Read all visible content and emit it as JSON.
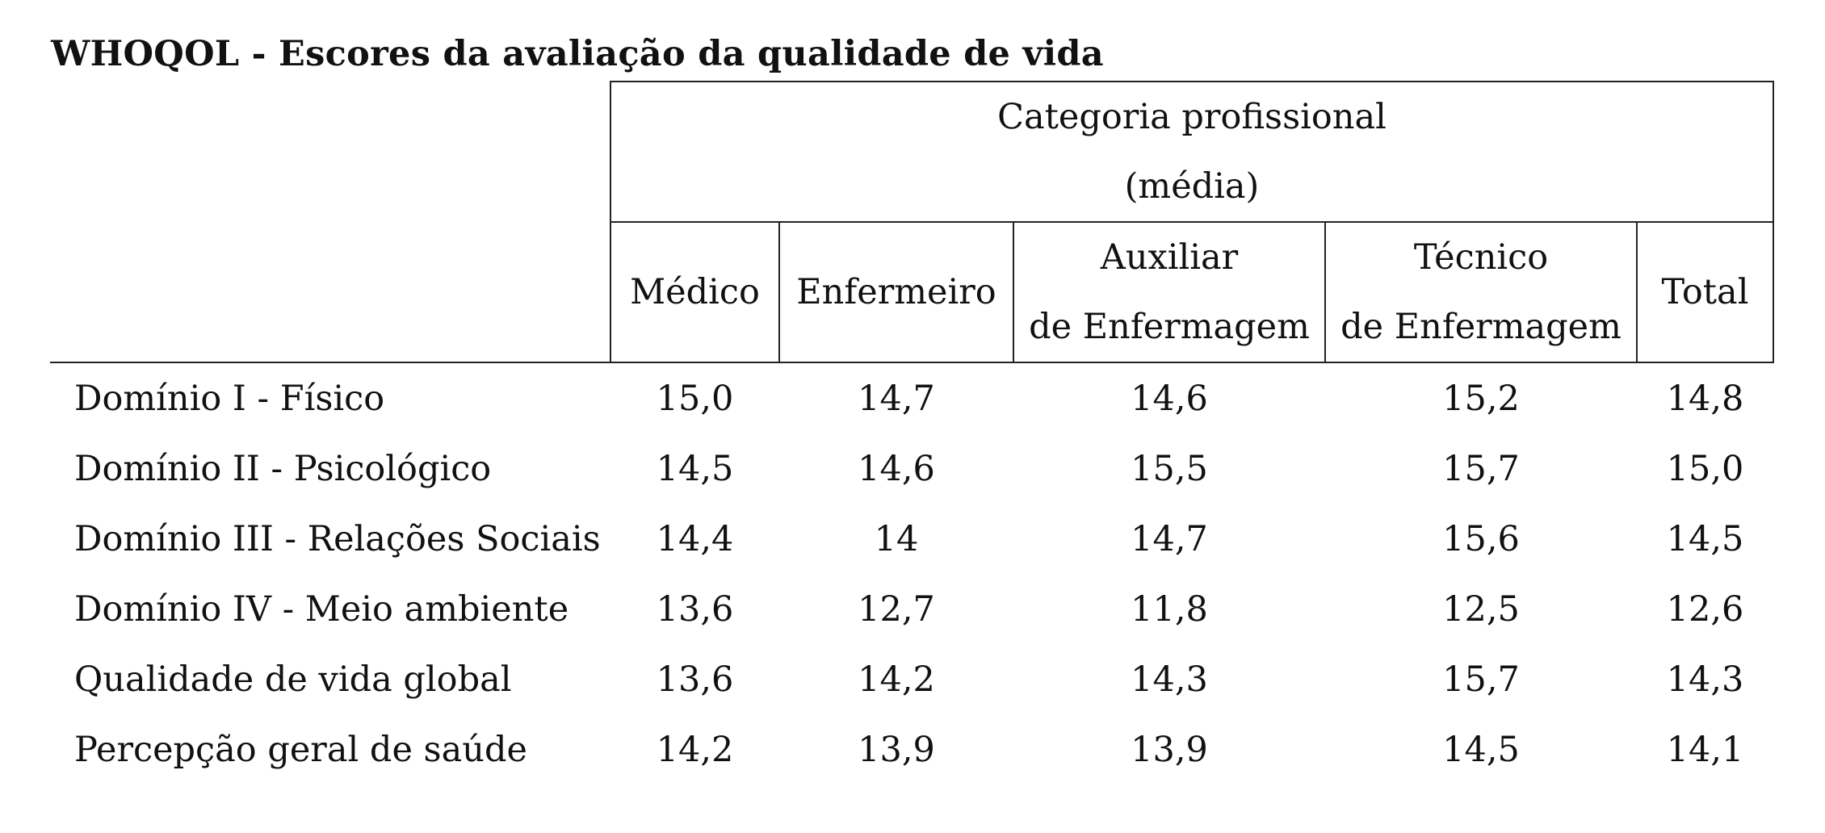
{
  "title": "WHOQOL - Escores da avaliação da qualidade de vida",
  "header": {
    "group_line1": "Categoria profissional",
    "group_line2": "(média)",
    "columns": [
      {
        "line1": "Médico",
        "line2": ""
      },
      {
        "line1": "Enfermeiro",
        "line2": ""
      },
      {
        "line1": "Auxiliar",
        "line2": "de Enfermagem"
      },
      {
        "line1": "Técnico",
        "line2": "de Enfermagem"
      },
      {
        "line1": "Total",
        "line2": ""
      }
    ]
  },
  "rows": [
    {
      "label": "Domínio I - Físico",
      "values": [
        "15,0",
        "14,7",
        "14,6",
        "15,2",
        "14,8"
      ]
    },
    {
      "label": "Domínio II - Psicológico",
      "values": [
        "14,5",
        "14,6",
        "15,5",
        "15,7",
        "15,0"
      ]
    },
    {
      "label": "Domínio III - Relações Sociais",
      "values": [
        "14,4",
        "14",
        "14,7",
        "15,6",
        "14,5"
      ]
    },
    {
      "label": "Domínio IV - Meio ambiente",
      "values": [
        "13,6",
        "12,7",
        "11,8",
        "12,5",
        "12,6"
      ]
    },
    {
      "label": "Qualidade de vida global",
      "values": [
        "13,6",
        "14,2",
        "14,3",
        "15,7",
        "14,3"
      ]
    },
    {
      "label": "Percepção geral de saúde",
      "values": [
        "14,2",
        "13,9",
        "13,9",
        "14,5",
        "14,1"
      ]
    }
  ]
}
